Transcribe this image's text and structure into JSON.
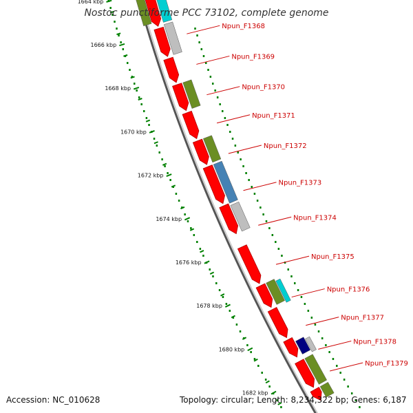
{
  "title": "Nostoc punctiforme PCC 73102, complete genome",
  "footer": {
    "accession": "Accession: NC_010628",
    "topology": "Topology: circular; Length: 8,234,322 bp; Genes: 6,187"
  },
  "colors": {
    "red": "#ff0000",
    "olive": "#6b8e23",
    "grey": "#bebebe",
    "cyan": "#00ced1",
    "steelblue": "#4682b4",
    "navy": "#000080",
    "scale": "#008000",
    "label": "#cc0000",
    "backbone": "#808080"
  },
  "scale": {
    "unit": "kbp",
    "ticks": [
      {
        "label": "1664 kbp",
        "kbp": 1664
      },
      {
        "label": "1666 kbp",
        "kbp": 1666
      },
      {
        "label": "1668 kbp",
        "kbp": 1668
      },
      {
        "label": "1670 kbp",
        "kbp": 1670
      },
      {
        "label": "1672 kbp",
        "kbp": 1672
      },
      {
        "label": "1674 kbp",
        "kbp": 1674
      },
      {
        "label": "1676 kbp",
        "kbp": 1676
      },
      {
        "label": "1678 kbp",
        "kbp": 1678
      },
      {
        "label": "1680 kbp",
        "kbp": 1680
      },
      {
        "label": "1682 kbp",
        "kbp": 1682
      }
    ]
  },
  "gene_labels": [
    {
      "name": "Npun_F1368",
      "kbp": 1665.5
    },
    {
      "name": "Npun_F1369",
      "kbp": 1666.9
    },
    {
      "name": "Npun_F1370",
      "kbp": 1668.3
    },
    {
      "name": "Npun_F1371",
      "kbp": 1669.6
    },
    {
      "name": "Npun_F1372",
      "kbp": 1671.0
    },
    {
      "name": "Npun_F1373",
      "kbp": 1672.7
    },
    {
      "name": "Npun_F1374",
      "kbp": 1674.3
    },
    {
      "name": "Npun_F1375",
      "kbp": 1676.1
    },
    {
      "name": "Npun_F1376",
      "kbp": 1677.6
    },
    {
      "name": "Npun_F1377",
      "kbp": 1678.9
    },
    {
      "name": "Npun_F1378",
      "kbp": 1680.0
    },
    {
      "name": "Npun_F1379",
      "kbp": 1681.0
    }
  ],
  "cds_genes": [
    {
      "start": 1663.6,
      "end": 1665.3
    },
    {
      "start": 1665.4,
      "end": 1666.7
    },
    {
      "start": 1666.8,
      "end": 1667.9
    },
    {
      "start": 1668.0,
      "end": 1669.2
    },
    {
      "start": 1669.3,
      "end": 1670.5
    },
    {
      "start": 1670.6,
      "end": 1671.7
    },
    {
      "start": 1671.8,
      "end": 1673.5
    },
    {
      "start": 1673.6,
      "end": 1674.9
    },
    {
      "start": 1675.5,
      "end": 1677.2
    },
    {
      "start": 1677.3,
      "end": 1678.3
    },
    {
      "start": 1678.4,
      "end": 1679.7
    },
    {
      "start": 1679.8,
      "end": 1680.6
    },
    {
      "start": 1680.8,
      "end": 1682.0
    },
    {
      "start": 1682.1,
      "end": 1682.6
    }
  ],
  "features": [
    {
      "start": 1663.6,
      "end": 1665.1,
      "lane": 1,
      "color": "olive"
    },
    {
      "start": 1663.9,
      "end": 1665.2,
      "lane": 2,
      "color": "cyan"
    },
    {
      "start": 1665.3,
      "end": 1666.7,
      "lane": 2,
      "color": "grey"
    },
    {
      "start": 1668.0,
      "end": 1669.2,
      "lane": 2,
      "color": "olive"
    },
    {
      "start": 1670.6,
      "end": 1671.7,
      "lane": 2,
      "color": "olive"
    },
    {
      "start": 1671.8,
      "end": 1673.6,
      "lane": 2,
      "color": "steelblue"
    },
    {
      "start": 1673.7,
      "end": 1674.9,
      "lane": 2,
      "color": "grey"
    },
    {
      "start": 1677.3,
      "end": 1678.3,
      "lane": 2,
      "color": "olive"
    },
    {
      "start": 1677.4,
      "end": 1678.4,
      "lane": 3,
      "color": "cyan"
    },
    {
      "start": 1680.0,
      "end": 1680.6,
      "lane": 2,
      "color": "navy"
    },
    {
      "start": 1680.1,
      "end": 1680.7,
      "lane": 3,
      "color": "grey"
    },
    {
      "start": 1680.8,
      "end": 1682.0,
      "lane": 2,
      "color": "olive"
    },
    {
      "start": 1682.1,
      "end": 1682.6,
      "lane": 2,
      "color": "olive"
    }
  ]
}
